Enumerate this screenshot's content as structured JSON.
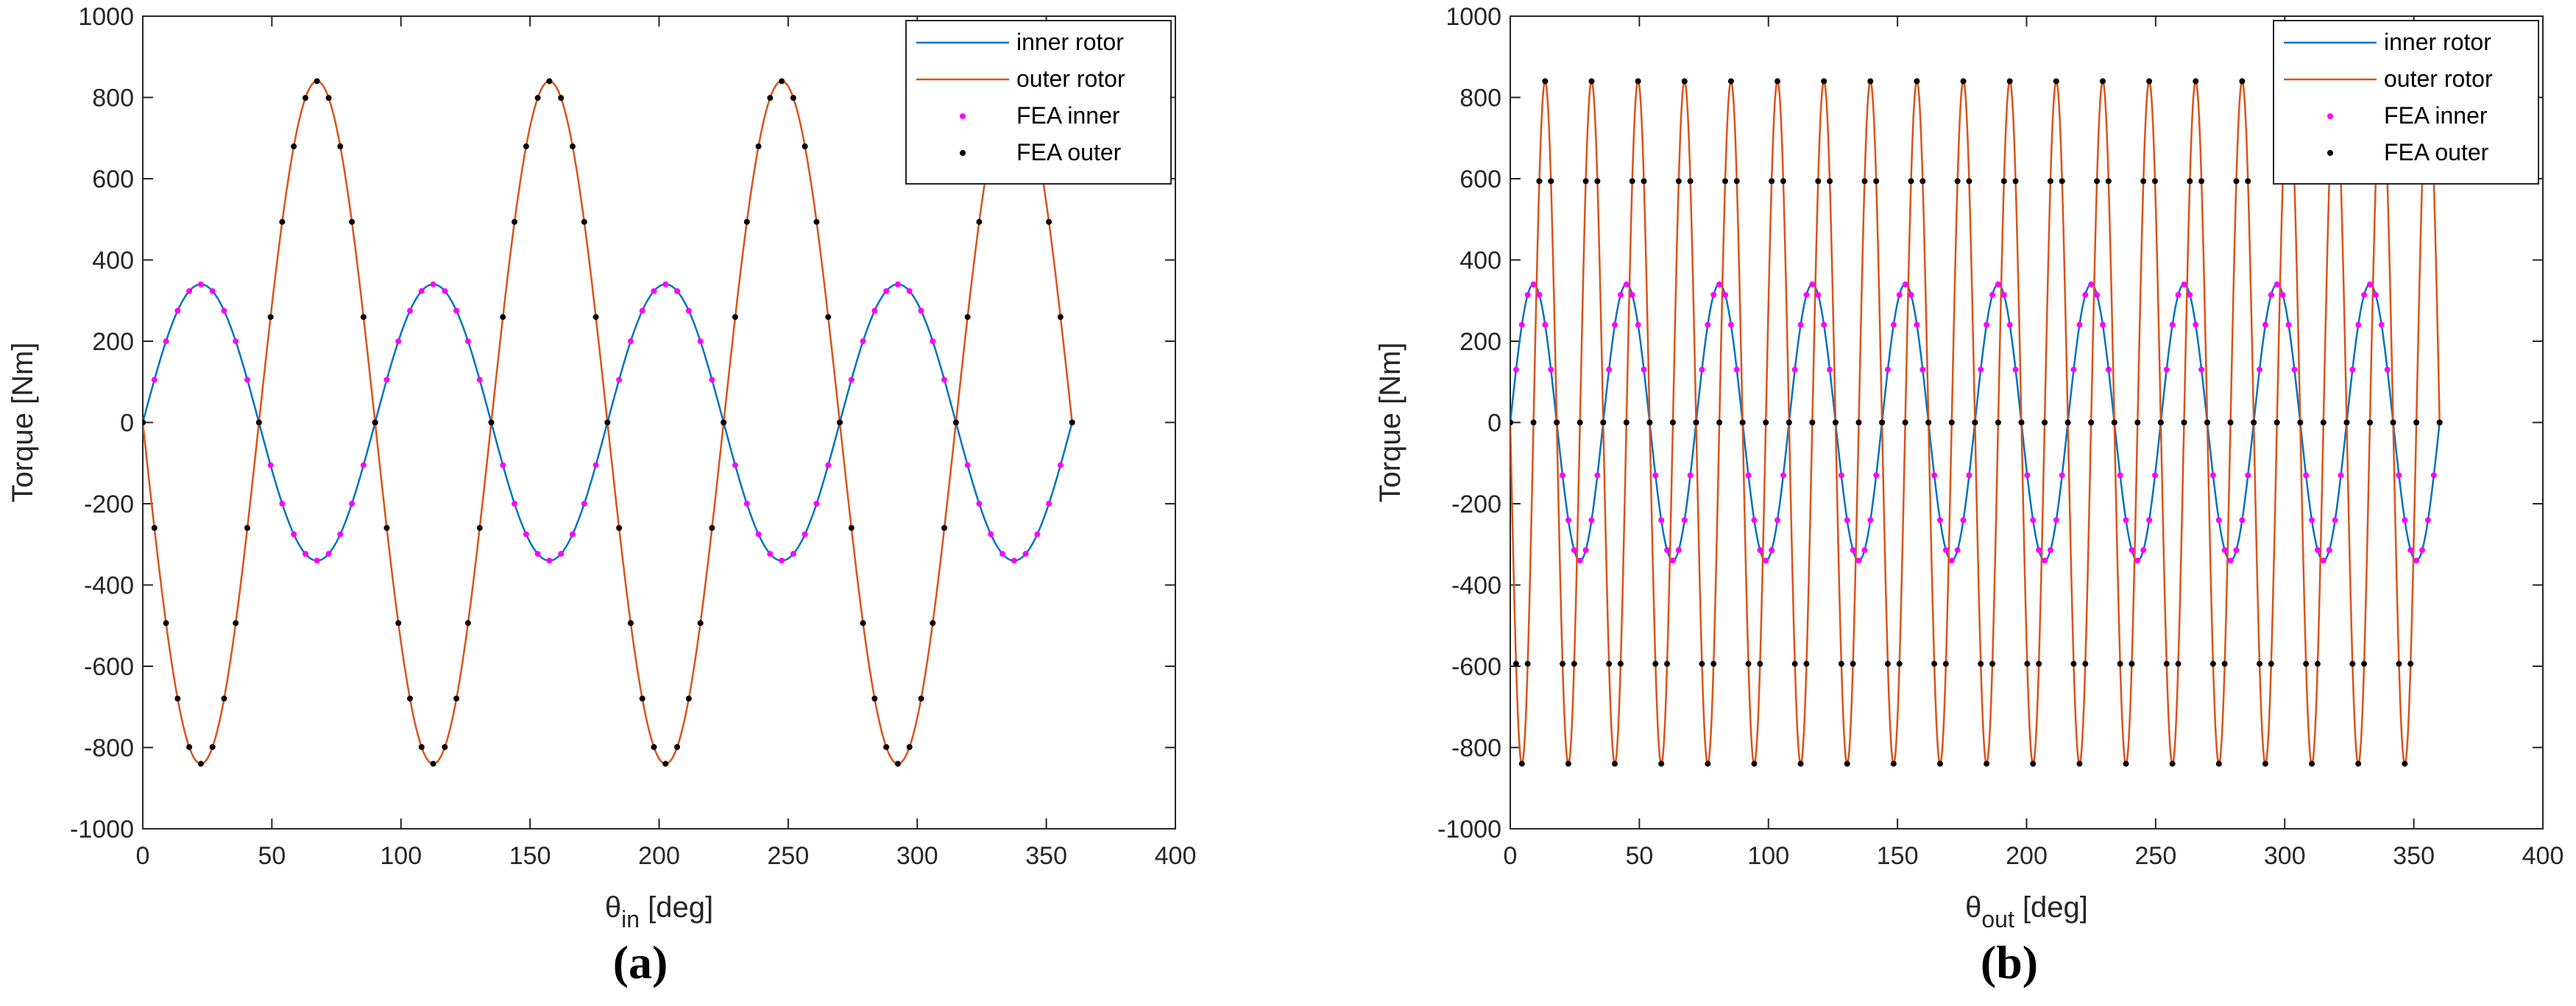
{
  "chart_data": [
    {
      "type": "line",
      "panel_label": "(a)",
      "xlabel": "θin [deg]",
      "xlabel_main": "θ",
      "xlabel_sub": "in",
      "xlabel_unit": " [deg]",
      "ylabel": "Torque [Nm]",
      "xlim": [
        0,
        400
      ],
      "ylim": [
        -1000,
        1000
      ],
      "xticks": [
        0,
        50,
        100,
        150,
        200,
        250,
        300,
        350,
        400
      ],
      "yticks": [
        -1000,
        -800,
        -600,
        -400,
        -200,
        0,
        200,
        400,
        600,
        800,
        1000
      ],
      "xrange": [
        0,
        360
      ],
      "grid": false,
      "legend_position": "top-right",
      "series": [
        {
          "name": "inner rotor",
          "kind": "line",
          "color": "#0072BD",
          "amplitude": 340,
          "periods_per_360": 4,
          "phase_sign": 1
        },
        {
          "name": "outer rotor",
          "kind": "line",
          "color": "#D95319",
          "amplitude": 840,
          "periods_per_360": 4,
          "phase_sign": -1,
          "harmonic_multiplier": 2
        },
        {
          "name": "FEA inner",
          "kind": "markers",
          "color": "#FF00FF",
          "amplitude": 340,
          "x_step": 4.5,
          "x_offset": 0
        },
        {
          "name": "FEA outer",
          "kind": "markers",
          "color": "#000000",
          "amplitude": 840,
          "x_step": 4.5,
          "x_offset": 0
        }
      ]
    },
    {
      "type": "line",
      "panel_label": "(b)",
      "xlabel": "θout [deg]",
      "xlabel_main": "θ",
      "xlabel_sub": "out",
      "xlabel_unit": " [deg]",
      "ylabel": "Torque [Nm]",
      "xlim": [
        0,
        400
      ],
      "ylim": [
        -1000,
        1000
      ],
      "xticks": [
        0,
        50,
        100,
        150,
        200,
        250,
        300,
        350,
        400
      ],
      "yticks": [
        -1000,
        -800,
        -600,
        -400,
        -200,
        0,
        200,
        400,
        600,
        800,
        1000
      ],
      "xrange": [
        0,
        360
      ],
      "grid": false,
      "legend_position": "top-right",
      "series": [
        {
          "name": "inner rotor",
          "kind": "line",
          "color": "#0072BD",
          "amplitude": 340,
          "period_deg": 36
        },
        {
          "name": "outer rotor",
          "kind": "line",
          "color": "#D95319",
          "amplitude": 840,
          "period_deg": 18
        },
        {
          "name": "FEA inner",
          "kind": "markers",
          "color": "#FF00FF",
          "amplitude": 340,
          "x_step": 2.25
        },
        {
          "name": "FEA outer",
          "kind": "markers",
          "color": "#000000",
          "amplitude": 840,
          "x_step": 2.25
        }
      ]
    }
  ]
}
